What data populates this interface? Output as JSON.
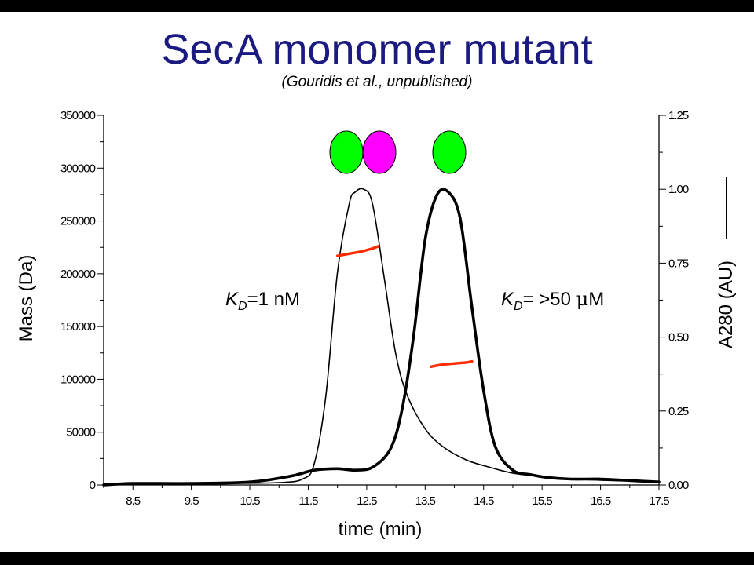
{
  "slide": {
    "title": "SecA monomer mutant",
    "subtitle": "(Gouridis et al., unpublished)"
  },
  "chart_data": {
    "type": "line",
    "xlabel": "time (min)",
    "ylabel_left": "Mass (Da)",
    "ylabel_right": "A280 (AU)",
    "xlim": [
      8.0,
      17.5
    ],
    "ylim_left": [
      0,
      350000
    ],
    "ylim_right": [
      0,
      1.25
    ],
    "x_ticks": [
      "8.5",
      "9.5",
      "10.5",
      "11.5",
      "12.5",
      "13.5",
      "14.5",
      "15.5",
      "16.5",
      "17.5"
    ],
    "x_tick_values": [
      8.5,
      9.5,
      10.5,
      11.5,
      12.5,
      13.5,
      14.5,
      15.5,
      16.5,
      17.5
    ],
    "y_left_ticks": [
      "0",
      "50000",
      "100000",
      "150000",
      "200000",
      "250000",
      "300000",
      "350000"
    ],
    "y_left_tick_values": [
      0,
      50000,
      100000,
      150000,
      200000,
      250000,
      300000,
      350000
    ],
    "y_right_ticks": [
      "0.00",
      "0.25",
      "0.50",
      "0.75",
      "1.00",
      "1.25"
    ],
    "y_right_tick_values": [
      0,
      0.25,
      0.5,
      0.75,
      1.0,
      1.25
    ],
    "series": [
      {
        "axis": "right",
        "style": "thin",
        "color": "#000000",
        "x": [
          8.0,
          9.0,
          10.0,
          11.0,
          11.4,
          11.6,
          11.8,
          12.0,
          12.2,
          12.3,
          12.45,
          12.6,
          12.8,
          13.0,
          13.2,
          13.5,
          13.8,
          14.2,
          14.6,
          15.0,
          15.5,
          16.0,
          17.5
        ],
        "y": [
          0.005,
          0.005,
          0.005,
          0.008,
          0.02,
          0.07,
          0.3,
          0.72,
          0.95,
          0.99,
          1.0,
          0.95,
          0.7,
          0.44,
          0.3,
          0.19,
          0.13,
          0.085,
          0.06,
          0.04,
          0.03,
          0.02,
          0.01
        ]
      },
      {
        "axis": "right",
        "style": "thick",
        "color": "#000000",
        "x": [
          8.0,
          8.5,
          9.5,
          10.5,
          11.2,
          11.6,
          12.0,
          12.3,
          12.6,
          12.9,
          13.1,
          13.3,
          13.5,
          13.7,
          13.9,
          14.1,
          14.3,
          14.5,
          14.7,
          15.0,
          15.3,
          15.6,
          16.0,
          16.5,
          17.0,
          17.5
        ],
        "y": [
          0.0,
          0.005,
          0.005,
          0.01,
          0.03,
          0.05,
          0.055,
          0.05,
          0.06,
          0.12,
          0.25,
          0.5,
          0.83,
          0.98,
          0.99,
          0.9,
          0.6,
          0.32,
          0.13,
          0.05,
          0.035,
          0.025,
          0.02,
          0.02,
          0.015,
          0.01
        ]
      },
      {
        "axis": "left",
        "style": "red-mass",
        "color": "#ff2a00",
        "x": [
          12.0,
          12.2,
          12.4,
          12.6,
          12.7
        ],
        "y": [
          217000,
          219000,
          221000,
          224000,
          226000
        ]
      },
      {
        "axis": "left",
        "style": "red-mass",
        "color": "#ff2a00",
        "x": [
          13.6,
          13.8,
          14.0,
          14.2,
          14.3
        ],
        "y": [
          112000,
          114000,
          115000,
          116000,
          117000
        ]
      }
    ],
    "annotations": [
      {
        "prefix": "K",
        "sub": "D",
        "rest": "=1 nM"
      },
      {
        "prefix": "K",
        "sub": "D",
        "rest": "= >50 ",
        "greek": "μ",
        "tail": "M"
      }
    ],
    "markers": [
      {
        "shape": "ellipse",
        "color": "#00ff00"
      },
      {
        "shape": "ellipse",
        "color": "#ff00ff"
      },
      {
        "shape": "ellipse",
        "color": "#00ff00"
      }
    ],
    "legend_line": true
  }
}
